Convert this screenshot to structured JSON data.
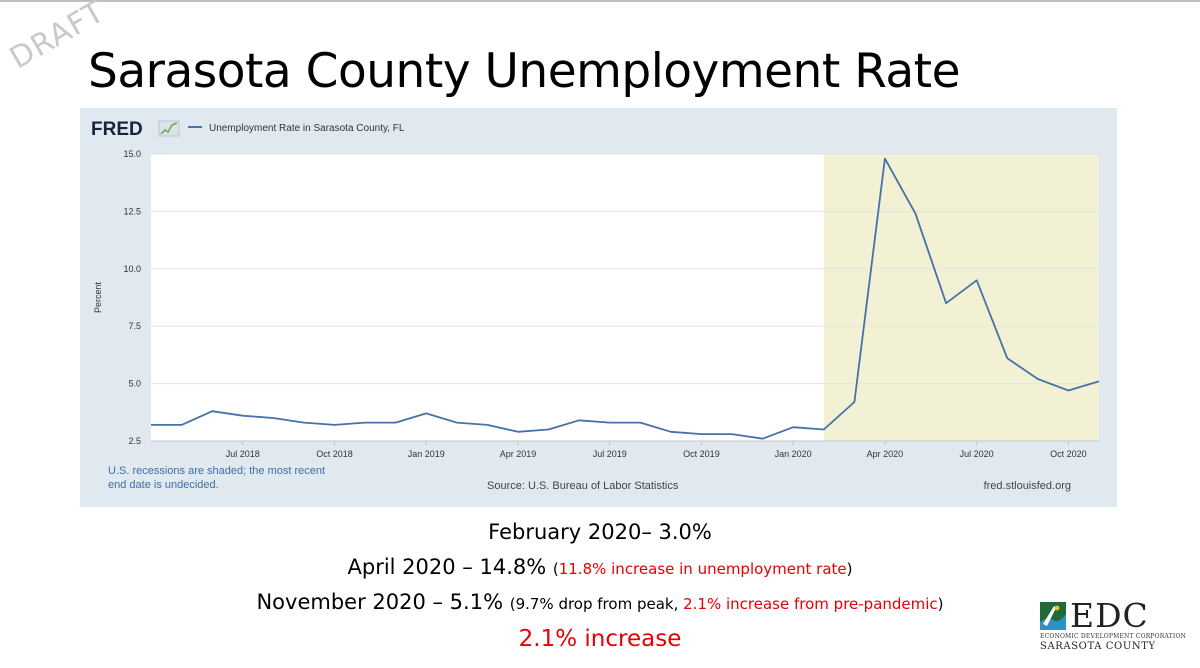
{
  "slide": {
    "watermark": "DRAFT",
    "title": "Sarasota County Unemployment Rate"
  },
  "chart_data": {
    "type": "line",
    "brand": "FRED",
    "series": [
      {
        "name": "Unemployment Rate in Sarasota County, FL",
        "color": "#4572a7",
        "x": [
          "2018-04",
          "2018-05",
          "2018-06",
          "2018-07",
          "2018-08",
          "2018-09",
          "2018-10",
          "2018-11",
          "2018-12",
          "2019-01",
          "2019-02",
          "2019-03",
          "2019-04",
          "2019-05",
          "2019-06",
          "2019-07",
          "2019-08",
          "2019-09",
          "2019-10",
          "2019-11",
          "2019-12",
          "2020-01",
          "2020-02",
          "2020-03",
          "2020-04",
          "2020-05",
          "2020-06",
          "2020-07",
          "2020-08",
          "2020-09",
          "2020-10",
          "2020-11"
        ],
        "values": [
          3.2,
          3.2,
          3.8,
          3.6,
          3.5,
          3.3,
          3.2,
          3.3,
          3.3,
          3.7,
          3.3,
          3.2,
          2.9,
          3.0,
          3.4,
          3.3,
          3.3,
          2.9,
          2.8,
          2.8,
          2.6,
          3.1,
          3.0,
          4.2,
          14.8,
          12.4,
          8.5,
          9.5,
          6.1,
          5.2,
          4.7,
          5.1
        ]
      }
    ],
    "ylabel": "Percent",
    "ylim": [
      2.5,
      15.0
    ],
    "yticks": [
      "15.0",
      "12.5",
      "10.0",
      "7.5",
      "5.0",
      "2.5"
    ],
    "xticks": [
      {
        "label": "Jul 2018",
        "x": "2018-07"
      },
      {
        "label": "Oct 2018",
        "x": "2018-10"
      },
      {
        "label": "Jan 2019",
        "x": "2019-01"
      },
      {
        "label": "Apr 2019",
        "x": "2019-04"
      },
      {
        "label": "Jul 2019",
        "x": "2019-07"
      },
      {
        "label": "Oct 2019",
        "x": "2019-10"
      },
      {
        "label": "Jan 2020",
        "x": "2020-01"
      },
      {
        "label": "Apr 2020",
        "x": "2020-04"
      },
      {
        "label": "Jul 2020",
        "x": "2020-07"
      },
      {
        "label": "Oct 2020",
        "x": "2020-10"
      }
    ],
    "recession": {
      "start": "2020-02",
      "end": "2020-11",
      "color": "#f3f1d4"
    },
    "grid": true,
    "legend": "top-left",
    "footnote_lines": [
      "U.S. recessions are shaded; the most recent",
      "end date is undecided."
    ],
    "source": "Source: U.S. Bureau of Labor Statistics",
    "site": "fred.stlouisfed.org"
  },
  "stats": {
    "line1": "February 2020– 3.0%",
    "line2_main": "April 2020 – 14.8% ",
    "line2_paren_open": "(",
    "line2_note": "11.8% increase in unemployment rate",
    "line2_paren_close": ")",
    "line3_main": "November 2020 – 5.1% ",
    "line3_paren_open": "(9.7% drop from peak, ",
    "line3_note": "2.1% increase from pre-pandemic",
    "line3_paren_close": ")",
    "line4": "2.1% increase"
  },
  "logo": {
    "name": "EDC",
    "line1": "ECONOMIC DEVELOPMENT CORPORATION",
    "line2": "SARASOTA COUNTY"
  }
}
